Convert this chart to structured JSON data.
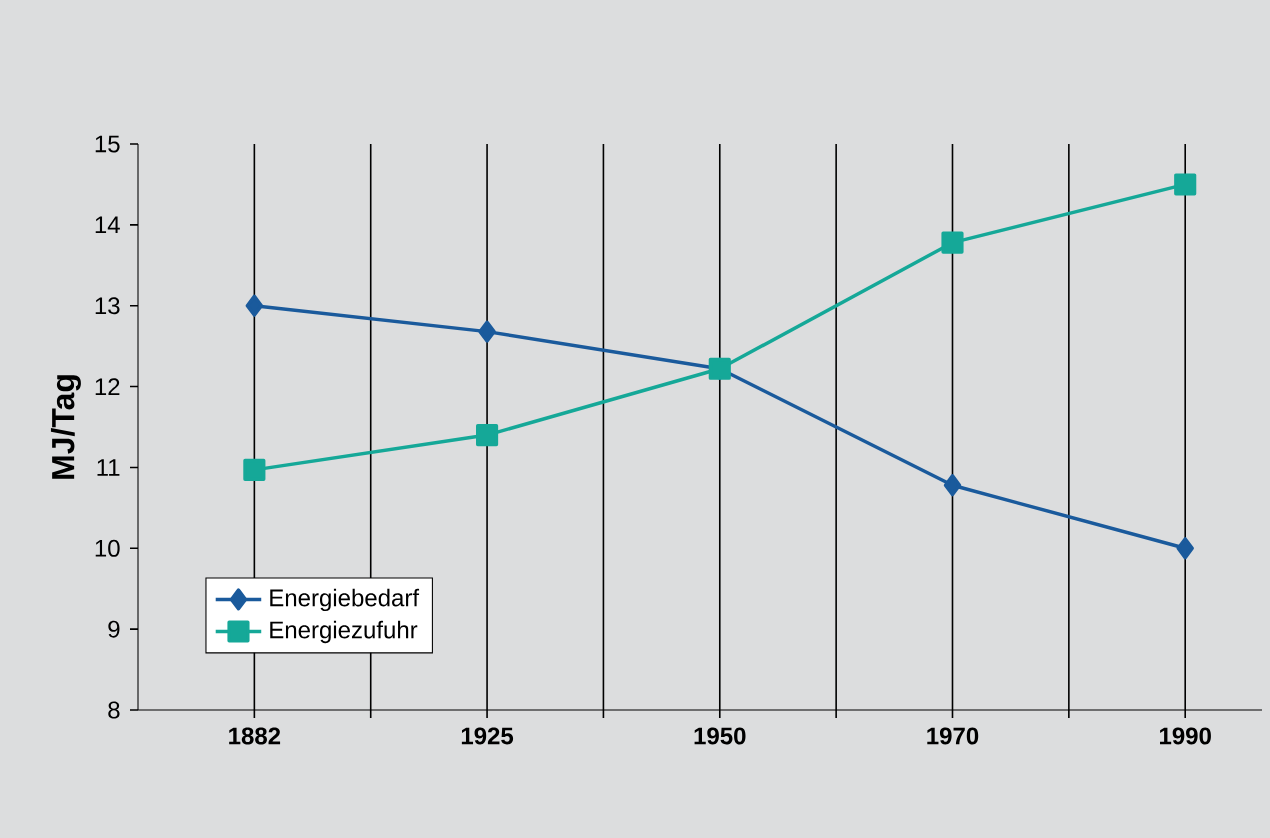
{
  "chart_data": {
    "type": "line",
    "ylabel": "MJ/Tag",
    "categories": [
      "1882",
      "1925",
      "1950",
      "1970",
      "1990"
    ],
    "series": [
      {
        "name": "Energiebedarf",
        "color": "#1a5a9c",
        "marker": "diamond",
        "values": [
          13.0,
          12.68,
          12.22,
          10.78,
          10.0
        ]
      },
      {
        "name": "Energiezufuhr",
        "color": "#15a898",
        "marker": "square",
        "values": [
          10.97,
          11.4,
          12.22,
          13.78,
          14.5
        ]
      }
    ],
    "ylim": [
      8,
      15
    ],
    "yticks": [
      8,
      9,
      10,
      11,
      12,
      13,
      14,
      15
    ],
    "grid": "x",
    "legend": "bottom left"
  }
}
